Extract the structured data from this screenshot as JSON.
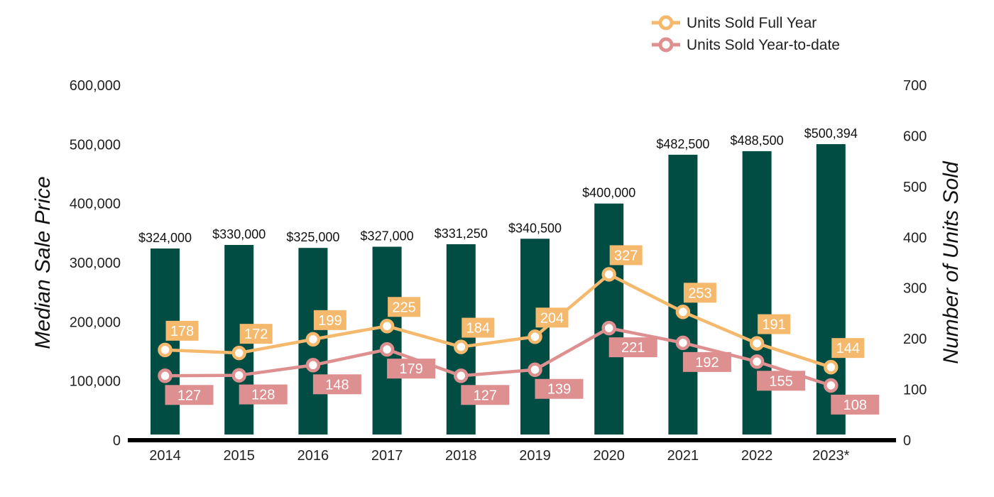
{
  "chart_data": {
    "type": "bar",
    "categories": [
      "2014",
      "2015",
      "2016",
      "2017",
      "2018",
      "2019",
      "2020",
      "2021",
      "2022",
      "2023*"
    ],
    "bars": {
      "axis": "left",
      "values": [
        324000,
        330000,
        325000,
        327000,
        331250,
        340500,
        400000,
        482500,
        488500,
        500394
      ],
      "labels": [
        "$324,000",
        "$330,000",
        "$325,000",
        "$327,000",
        "$331,250",
        "$340,500",
        "$400,000",
        "$482,500",
        "$488,500",
        "$500,394"
      ],
      "color": "#014d44"
    },
    "series": [
      {
        "name": "Units Sold Full Year",
        "type": "line",
        "axis": "right",
        "color": "#f5b96e",
        "values": [
          178,
          172,
          199,
          225,
          184,
          204,
          327,
          253,
          191,
          144
        ]
      },
      {
        "name": "Units Sold Year-to-date",
        "type": "line",
        "axis": "right",
        "color": "#de8f8f",
        "values": [
          127,
          128,
          148,
          179,
          127,
          139,
          221,
          192,
          155,
          108
        ]
      }
    ],
    "ylabel": "Median Sale Price",
    "y2label": "Number of Units Sold",
    "ylim": [
      0,
      600000
    ],
    "y2lim": [
      0,
      700
    ],
    "yticks": [
      "0",
      "100,000",
      "200,000",
      "300,000",
      "400,000",
      "500,000",
      "600,000"
    ],
    "y2ticks": [
      "0",
      "100",
      "200",
      "300",
      "400",
      "500",
      "600",
      "700"
    ],
    "legend": "top-right",
    "grid": false
  }
}
